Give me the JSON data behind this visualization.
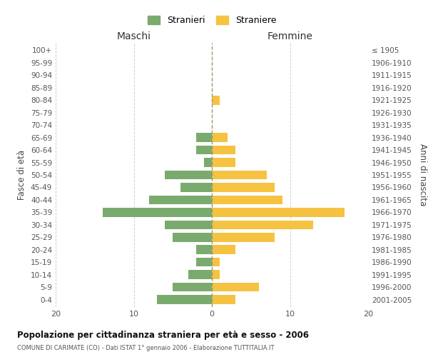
{
  "age_groups": [
    "0-4",
    "5-9",
    "10-14",
    "15-19",
    "20-24",
    "25-29",
    "30-34",
    "35-39",
    "40-44",
    "45-49",
    "50-54",
    "55-59",
    "60-64",
    "65-69",
    "70-74",
    "75-79",
    "80-84",
    "85-89",
    "90-94",
    "95-99",
    "100+"
  ],
  "birth_years": [
    "2001-2005",
    "1996-2000",
    "1991-1995",
    "1986-1990",
    "1981-1985",
    "1976-1980",
    "1971-1975",
    "1966-1970",
    "1961-1965",
    "1956-1960",
    "1951-1955",
    "1946-1950",
    "1941-1945",
    "1936-1940",
    "1931-1935",
    "1926-1930",
    "1921-1925",
    "1916-1920",
    "1911-1915",
    "1906-1910",
    "≤ 1905"
  ],
  "males": [
    7,
    5,
    3,
    2,
    2,
    5,
    6,
    14,
    8,
    4,
    6,
    1,
    2,
    2,
    0,
    0,
    0,
    0,
    0,
    0,
    0
  ],
  "females": [
    3,
    6,
    1,
    1,
    3,
    8,
    13,
    17,
    9,
    8,
    7,
    3,
    3,
    2,
    0,
    0,
    1,
    0,
    0,
    0,
    0
  ],
  "male_color": "#7aab6e",
  "female_color": "#f5c242",
  "male_label": "Stranieri",
  "female_label": "Straniere",
  "title": "Popolazione per cittadinanza straniera per età e sesso - 2006",
  "subtitle": "COMUNE DI CARIMATE (CO) - Dati ISTAT 1° gennaio 2006 - Elaborazione TUTTITALIA.IT",
  "xlabel_left": "Maschi",
  "xlabel_right": "Femmine",
  "ylabel_left": "Fasce di età",
  "ylabel_right": "Anni di nascita",
  "xlim": 20,
  "background_color": "#ffffff",
  "grid_color": "#d0d0d0",
  "center_line_color": "#999977"
}
